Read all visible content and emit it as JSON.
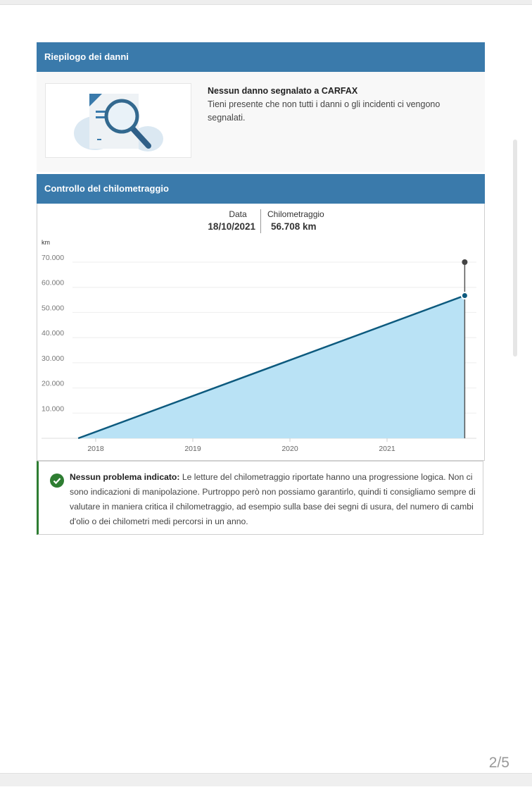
{
  "damage": {
    "header": "Riepilogo dei danni",
    "title": "Nessun danno segnalato a CARFAX",
    "text": "Tieni presente che non tutti i danni o gli incidenti ci vengono segnalati.",
    "illustration_icon": "document-magnifier-icon"
  },
  "mileage": {
    "header": "Controllo del chilometraggio",
    "tooltip": {
      "date_label": "Data",
      "date_value": "18/10/2021",
      "km_label": "Chilometraggio",
      "km_value": "56.708 km"
    },
    "note_bold": "Nessun problema indicato:",
    "note_text": " Le letture del chilometraggio riportate hanno una progressione logica. Non ci sono indicazioni di manipolazione. Purtroppo però non possiamo garantirlo, quindi ti consigliamo sempre di valutare in maniera critica il chilometraggio, ad esempio sulla base dei segni di usura, del numero di cambi d'olio o dei chilometri medi percorsi in un anno.",
    "note_icon": "check-circle-icon",
    "status_color": "#2e7d32"
  },
  "chart_data": {
    "type": "area",
    "ylabel": "km",
    "ylim": [
      0,
      70000
    ],
    "yticks": [
      "10.000",
      "20.000",
      "30.000",
      "40.000",
      "50.000",
      "60.000",
      "70.000"
    ],
    "ytick_values": [
      10000,
      20000,
      30000,
      40000,
      50000,
      60000,
      70000
    ],
    "xticks": [
      "2018",
      "2019",
      "2020",
      "2021"
    ],
    "xtick_values": [
      2018,
      2019,
      2020,
      2021
    ],
    "points": [
      {
        "x": 2017.82,
        "y": 0
      },
      {
        "x": 2021.8,
        "y": 56708
      }
    ],
    "highlight": {
      "x": 2021.8,
      "y": 56708
    },
    "grid": true,
    "line_color": "#0d5a7e",
    "fill_color": "#b9e2f5"
  },
  "page_indicator": "2/5"
}
